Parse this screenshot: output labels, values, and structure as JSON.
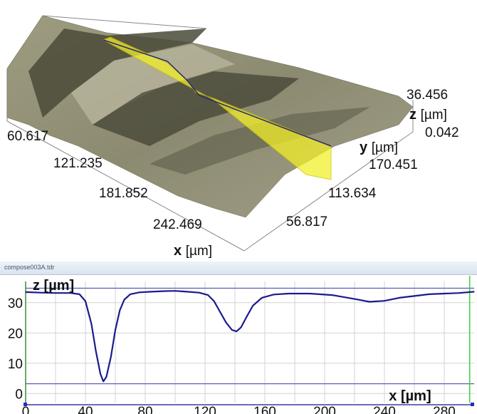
{
  "view3d": {
    "z_axis": {
      "name": "z",
      "unit": "[µm]",
      "max": "36.456",
      "min": "0.042"
    },
    "y_axis": {
      "name": "y",
      "unit": "[µm]",
      "ticks": [
        "170.451",
        "113.634",
        "56.817"
      ]
    },
    "x_axis": {
      "name": "x",
      "unit": "[µm]",
      "ticks": [
        "60.617",
        "121.235",
        "181.852",
        "242.469"
      ]
    },
    "colors": {
      "surface": "#8a8a6a",
      "dark_band": "#3f3f30",
      "profile_plane": "#f2ef2a"
    }
  },
  "profile_window": {
    "title": "compose003A.tdr",
    "colors": {
      "curve": "#1a1a8c",
      "axis": "#3a3aa0",
      "grid": "#d3d3d3",
      "marker": "#3ad13a"
    }
  },
  "chart_data": {
    "type": "line",
    "title": "",
    "xlabel": "x [µm]",
    "ylabel": "z [µm]",
    "xlim": [
      0,
      300
    ],
    "ylim": [
      -3,
      37
    ],
    "xticks": [
      "0",
      "40",
      "80",
      "120",
      "160",
      "200",
      "240",
      "280"
    ],
    "yticks": [
      "0",
      "10",
      "20",
      "30"
    ],
    "grid": true,
    "series": [
      {
        "x": [
          0,
          10,
          20,
          30,
          36,
          40,
          44,
          47,
          50,
          52,
          54,
          57,
          60,
          63,
          66,
          70,
          76,
          84,
          92,
          100,
          108,
          116,
          122,
          126,
          130,
          134,
          138,
          141,
          144,
          148,
          152,
          158,
          166,
          176,
          190,
          205,
          220,
          230,
          240,
          250,
          260,
          270,
          280,
          290,
          300
        ],
        "y": [
          33.5,
          33.3,
          33.2,
          33.2,
          32.8,
          30.5,
          23.0,
          14.0,
          6.5,
          4.0,
          5.5,
          12.0,
          21.0,
          27.5,
          31.0,
          32.8,
          33.4,
          33.6,
          33.8,
          33.9,
          33.6,
          33.3,
          32.5,
          30.5,
          27.0,
          23.5,
          21.0,
          20.5,
          21.8,
          25.5,
          29.0,
          31.6,
          32.7,
          33.0,
          33.0,
          32.5,
          31.2,
          30.3,
          30.6,
          31.6,
          32.2,
          32.8,
          33.0,
          33.2,
          33.6
        ]
      }
    ],
    "vertical_marker_x": 297
  }
}
